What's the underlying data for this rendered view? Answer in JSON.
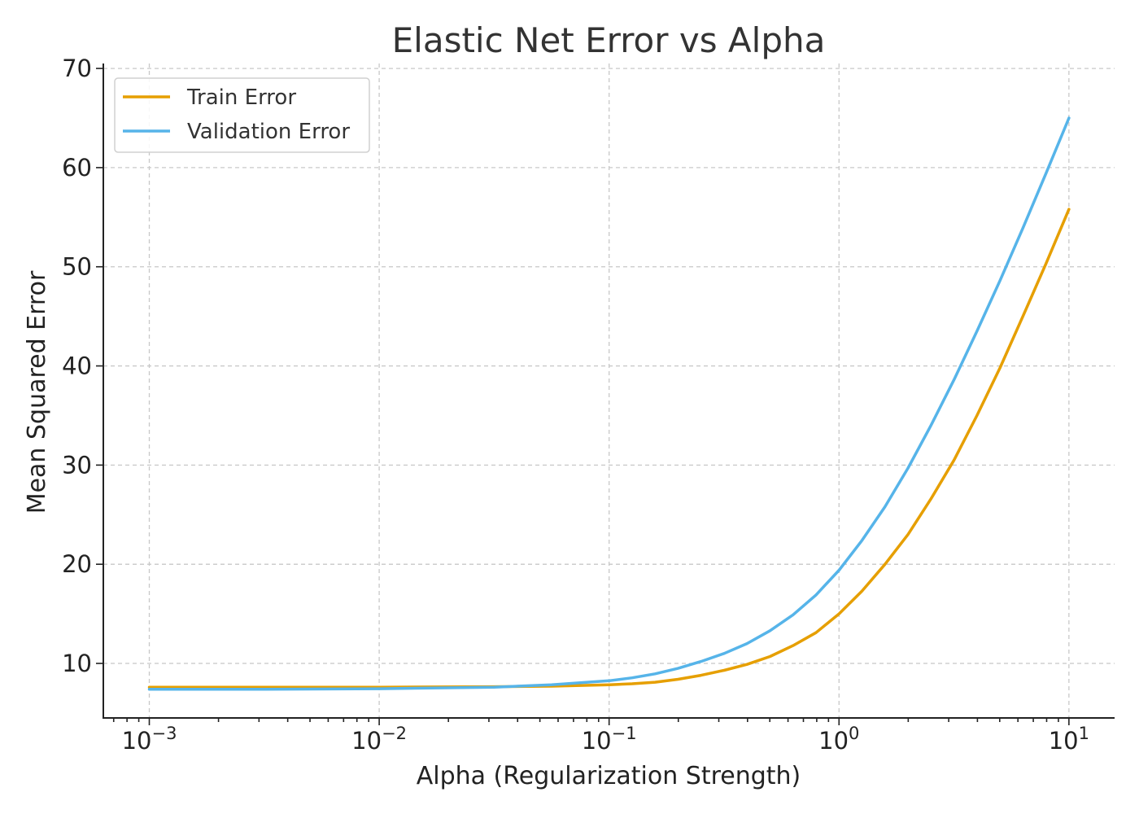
{
  "chart_data": {
    "type": "line",
    "title": "Elastic Net Error vs Alpha",
    "xlabel": "Alpha (Regularization Strength)",
    "ylabel": "Mean Squared Error",
    "xscale": "log",
    "xlim": [
      0.000631,
      15.8
    ],
    "ylim": [
      4.5,
      70.5
    ],
    "xticks": [
      {
        "value": 0.001,
        "base": "10",
        "exp": "−3"
      },
      {
        "value": 0.01,
        "base": "10",
        "exp": "−2"
      },
      {
        "value": 0.1,
        "base": "10",
        "exp": "−1"
      },
      {
        "value": 1,
        "base": "10",
        "exp": "0"
      },
      {
        "value": 10,
        "base": "10",
        "exp": "1"
      }
    ],
    "yticks": [
      10,
      20,
      30,
      40,
      50,
      60,
      70
    ],
    "grid": true,
    "legend_position": "top-left",
    "x": [
      0.001,
      0.00316,
      0.01,
      0.0316,
      0.0562,
      0.1,
      0.1259,
      0.1585,
      0.1995,
      0.2512,
      0.3162,
      0.3981,
      0.5012,
      0.631,
      0.7943,
      1.0,
      1.2589,
      1.5849,
      1.9953,
      2.5119,
      3.1623,
      3.9811,
      5.0119,
      6.3096,
      7.9433,
      10.0
    ],
    "series": [
      {
        "name": "Train Error",
        "color": "#E69F00",
        "values": [
          7.6,
          7.6,
          7.6,
          7.65,
          7.7,
          7.85,
          7.95,
          8.1,
          8.4,
          8.8,
          9.3,
          9.9,
          10.7,
          11.8,
          13.1,
          15.0,
          17.3,
          20.0,
          23.0,
          26.6,
          30.5,
          35.0,
          39.8,
          45.0,
          50.3,
          55.8
        ]
      },
      {
        "name": "Validation Error",
        "color": "#56B4E9",
        "values": [
          7.4,
          7.4,
          7.45,
          7.6,
          7.85,
          8.25,
          8.55,
          8.95,
          9.5,
          10.2,
          11.0,
          12.0,
          13.3,
          14.9,
          16.9,
          19.4,
          22.4,
          25.8,
          29.7,
          34.0,
          38.6,
          43.5,
          48.6,
          53.9,
          59.4,
          65.0
        ]
      }
    ]
  }
}
